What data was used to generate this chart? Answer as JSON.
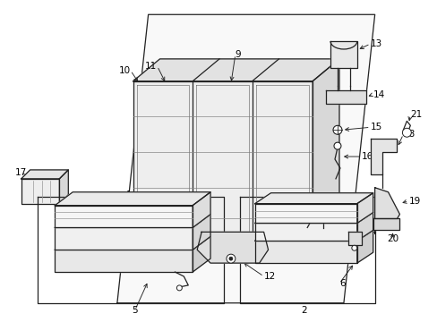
{
  "background_color": "#ffffff",
  "line_color": "#222222",
  "text_color": "#000000",
  "font_size": 7.5,
  "fig_width": 4.89,
  "fig_height": 3.6,
  "dpi": 100
}
